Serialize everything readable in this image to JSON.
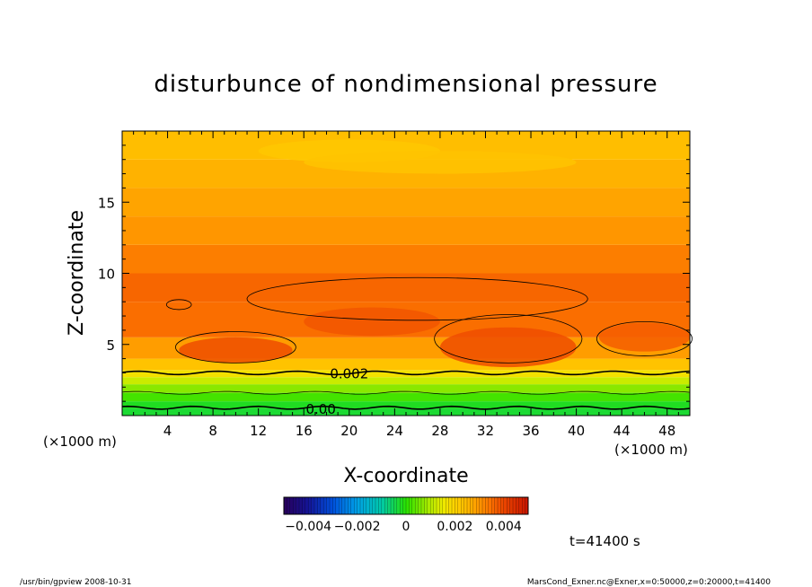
{
  "chart_data": {
    "type": "heatmap",
    "title": "disturbunce of nondimensional pressure",
    "xlabel": "X-coordinate",
    "ylabel": "Z-coordinate",
    "x_unit_left": "(×1000 m)",
    "x_unit_right": "(×1000 m)",
    "xlim": [
      0,
      50
    ],
    "ylim": [
      0,
      20
    ],
    "x_ticks": [
      4,
      8,
      12,
      16,
      20,
      24,
      28,
      32,
      36,
      40,
      44,
      48
    ],
    "y_ticks": [
      5,
      10,
      15
    ],
    "colorbar": {
      "range": [
        -0.005,
        0.005
      ],
      "tick_values": [
        -0.004,
        -0.002,
        0,
        0.002,
        0.004
      ],
      "tick_labels": [
        "−0.004",
        "−0.002",
        "0",
        "0.002",
        "0.004"
      ]
    },
    "contour_labels": [
      {
        "text": "0.002",
        "x": 20,
        "z": 3.0
      },
      {
        "text": "0.00",
        "x": 17.5,
        "z": 0.5
      }
    ],
    "field_levels": [
      {
        "z": 0.0,
        "value": -0.0003
      },
      {
        "z": 0.5,
        "value": -0.0002
      },
      {
        "z": 1.0,
        "value": 0.0002
      },
      {
        "z": 1.6,
        "value": 0.0007
      },
      {
        "z": 2.2,
        "value": 0.0012
      },
      {
        "z": 2.7,
        "value": 0.0017
      },
      {
        "z": 3.2,
        "value": 0.0023
      },
      {
        "z": 4.0,
        "value": 0.0029
      },
      {
        "z": 5.5,
        "value": 0.0035
      },
      {
        "z": 8.0,
        "value": 0.0036
      },
      {
        "z": 10.0,
        "value": 0.0033
      },
      {
        "z": 12.0,
        "value": 0.003
      },
      {
        "z": 14.0,
        "value": 0.0028
      },
      {
        "z": 16.0,
        "value": 0.0026
      },
      {
        "z": 18.0,
        "value": 0.0024
      },
      {
        "z": 20.0,
        "value": 0.0024
      }
    ],
    "time_label": "t=41400 s",
    "grid": false
  },
  "footer": {
    "left": "/usr/bin/gpview   2008-10-31",
    "right": "MarsCond_Exner.nc@Exner,x=0:50000,z=0:20000,t=41400"
  },
  "colors": {
    "low_negative": "#3a0070",
    "zero": "#30e000",
    "high_positive": "#e03000",
    "contour": "#000000"
  }
}
